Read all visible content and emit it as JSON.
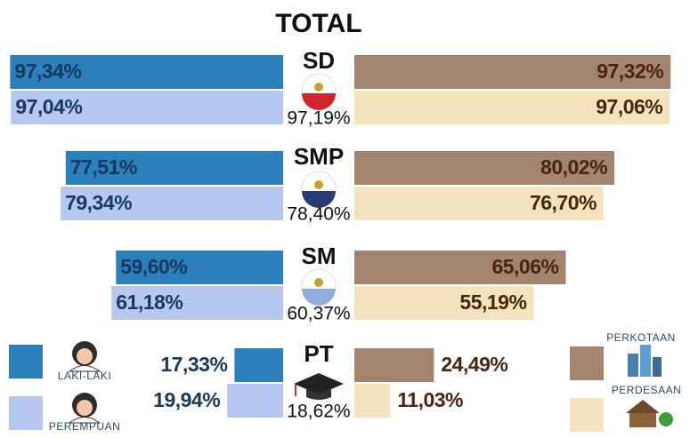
{
  "chart_data": {
    "type": "bar",
    "title": "TOTAL",
    "categories": [
      "SD",
      "SMP",
      "SM",
      "PT"
    ],
    "series": [
      {
        "name": "LAKI-LAKI",
        "color": "#2b7fbb",
        "values": [
          97.34,
          77.51,
          59.6,
          17.33
        ],
        "value_labels": [
          "97,34%",
          "77,51%",
          "59,60%",
          "17,33%"
        ]
      },
      {
        "name": "PEREMPUAN",
        "color": "#b6c7f0",
        "values": [
          97.04,
          79.34,
          61.18,
          19.94
        ],
        "value_labels": [
          "97,04%",
          "79,34%",
          "61,18%",
          "19,94%"
        ]
      },
      {
        "name": "PERKOTAAN",
        "color": "#a3846f",
        "values": [
          97.32,
          80.02,
          65.06,
          24.49
        ],
        "value_labels": [
          "97,32%",
          "80,02%",
          "65,06%",
          "24,49%"
        ]
      },
      {
        "name": "PERDESAAN",
        "color": "#f3e4bd",
        "values": [
          97.06,
          76.7,
          55.19,
          11.03
        ],
        "value_labels": [
          "97,06%",
          "76,70%",
          "55,19%",
          "11,03%"
        ]
      }
    ],
    "totals": {
      "values": [
        97.19,
        78.4,
        60.37,
        18.62
      ],
      "value_labels": [
        "97,19%",
        "78,40%",
        "60,37%",
        "18,62%"
      ]
    }
  }
}
